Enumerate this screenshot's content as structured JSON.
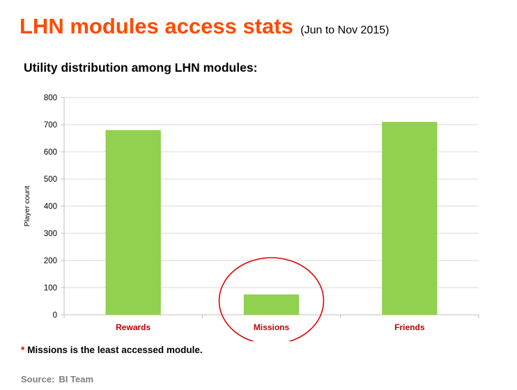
{
  "header": {
    "title": "LHN modules access stats",
    "period": "(Jun to Nov 2015)",
    "subtitle": "Utility distribution among LHN modules:"
  },
  "chart_data": {
    "type": "bar",
    "categories": [
      "Rewards",
      "Missions",
      "Friends"
    ],
    "values": [
      680,
      75,
      710
    ],
    "xlabel": "",
    "ylabel": "Player count",
    "ylim": [
      0,
      800
    ],
    "yticks": [
      0,
      100,
      200,
      300,
      400,
      500,
      600,
      700,
      800
    ],
    "grid": true,
    "legend": "none",
    "highlighted_category": "Missions",
    "colors": {
      "bar": "#92d050",
      "category_label": "#c00000",
      "highlight_circle": "#e00000",
      "grid": "#d9d9d9"
    }
  },
  "footer": {
    "note_marker": "*",
    "note": "Missions is the least accessed module.",
    "source_label": "Source:",
    "source_value": "BI Team"
  }
}
